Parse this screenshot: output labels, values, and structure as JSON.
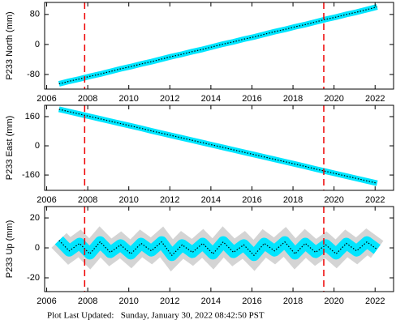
{
  "chart_data": [
    {
      "type": "line",
      "ylabel": "P233 North (mm)",
      "x": [
        2006.6,
        2007.1,
        2007.6,
        2008.1,
        2008.6,
        2009.1,
        2009.6,
        2010.1,
        2010.6,
        2011.1,
        2011.6,
        2012.1,
        2012.6,
        2013.1,
        2013.6,
        2014.1,
        2014.6,
        2015.1,
        2015.6,
        2016.1,
        2016.6,
        2017.1,
        2017.6,
        2018.1,
        2018.6,
        2019.1,
        2019.6,
        2020.1,
        2020.6,
        2021.1,
        2021.6,
        2022.1
      ],
      "series": [
        {
          "color": "#00e5ff",
          "values": [
            -105,
            -98,
            -92,
            -85,
            -79,
            -72,
            -65,
            -59,
            -52,
            -46,
            -39,
            -32,
            -26,
            -19,
            -13,
            -6,
            1,
            7,
            14,
            20,
            27,
            34,
            40,
            47,
            53,
            60,
            67,
            73,
            80,
            86,
            93,
            100
          ]
        }
      ],
      "xlim": [
        2005.9,
        2022.9
      ],
      "xticks": [
        2006,
        2008,
        2010,
        2012,
        2014,
        2016,
        2018,
        2020,
        2022
      ],
      "ylim": [
        -119,
        112
      ],
      "yticks": [
        -80,
        0,
        80
      ],
      "vlines": [
        2007.85,
        2019.5
      ]
    },
    {
      "type": "line",
      "ylabel": "P233 East (mm)",
      "x": [
        2006.6,
        2007.1,
        2007.6,
        2008.1,
        2008.6,
        2009.1,
        2009.6,
        2010.1,
        2010.6,
        2011.1,
        2011.6,
        2012.1,
        2012.6,
        2013.1,
        2013.6,
        2014.1,
        2014.6,
        2015.1,
        2015.6,
        2016.1,
        2016.6,
        2017.1,
        2017.6,
        2018.1,
        2018.6,
        2019.1,
        2019.6,
        2020.1,
        2020.6,
        2021.1,
        2021.6,
        2022.1
      ],
      "series": [
        {
          "color": "#00e5ff",
          "values": [
            200,
            187,
            174,
            161,
            148,
            135,
            122,
            109,
            96,
            82,
            69,
            56,
            43,
            30,
            17,
            4,
            -9,
            -22,
            -35,
            -48,
            -61,
            -74,
            -87,
            -100,
            -113,
            -127,
            -140,
            -153,
            -166,
            -179,
            -192,
            -205
          ]
        }
      ],
      "xlim": [
        2005.9,
        2022.9
      ],
      "xticks": [
        2006,
        2008,
        2010,
        2012,
        2014,
        2016,
        2018,
        2020,
        2022
      ],
      "ylim": [
        -244,
        222
      ],
      "yticks": [
        -160,
        0,
        160
      ],
      "vlines": [
        2007.85,
        2019.5
      ]
    },
    {
      "type": "scatter",
      "ylabel": "P233 Up (mm)",
      "x": [
        2006.6,
        2007.1,
        2007.6,
        2008.1,
        2008.6,
        2009.1,
        2009.6,
        2010.1,
        2010.6,
        2011.1,
        2011.6,
        2012.1,
        2012.6,
        2013.1,
        2013.6,
        2014.1,
        2014.6,
        2015.1,
        2015.6,
        2016.1,
        2016.6,
        2017.1,
        2017.6,
        2018.1,
        2018.6,
        2019.1,
        2019.6,
        2020.1,
        2020.6,
        2021.1,
        2021.6,
        2022.1
      ],
      "series": [
        {
          "color": "#00e5ff",
          "values": [
            5,
            -2,
            3,
            -4,
            4,
            -3,
            2,
            -4,
            3,
            -2,
            4,
            -5,
            2,
            -3,
            3,
            -4,
            4,
            -3,
            2,
            -5,
            3,
            -2,
            4,
            -4,
            3,
            -3,
            2,
            -4,
            3,
            -2,
            4,
            -1
          ]
        }
      ],
      "xlim": [
        2005.9,
        2022.9
      ],
      "xticks": [
        2006,
        2008,
        2010,
        2012,
        2014,
        2016,
        2018,
        2020,
        2022
      ],
      "ylim": [
        -29.2,
        27.6
      ],
      "yticks": [
        -20,
        0,
        20
      ],
      "vlines": [
        2007.85,
        2019.5
      ]
    }
  ],
  "footer": "Plot Last Updated:   Sunday, January 30, 2022 08:42:50 PST"
}
